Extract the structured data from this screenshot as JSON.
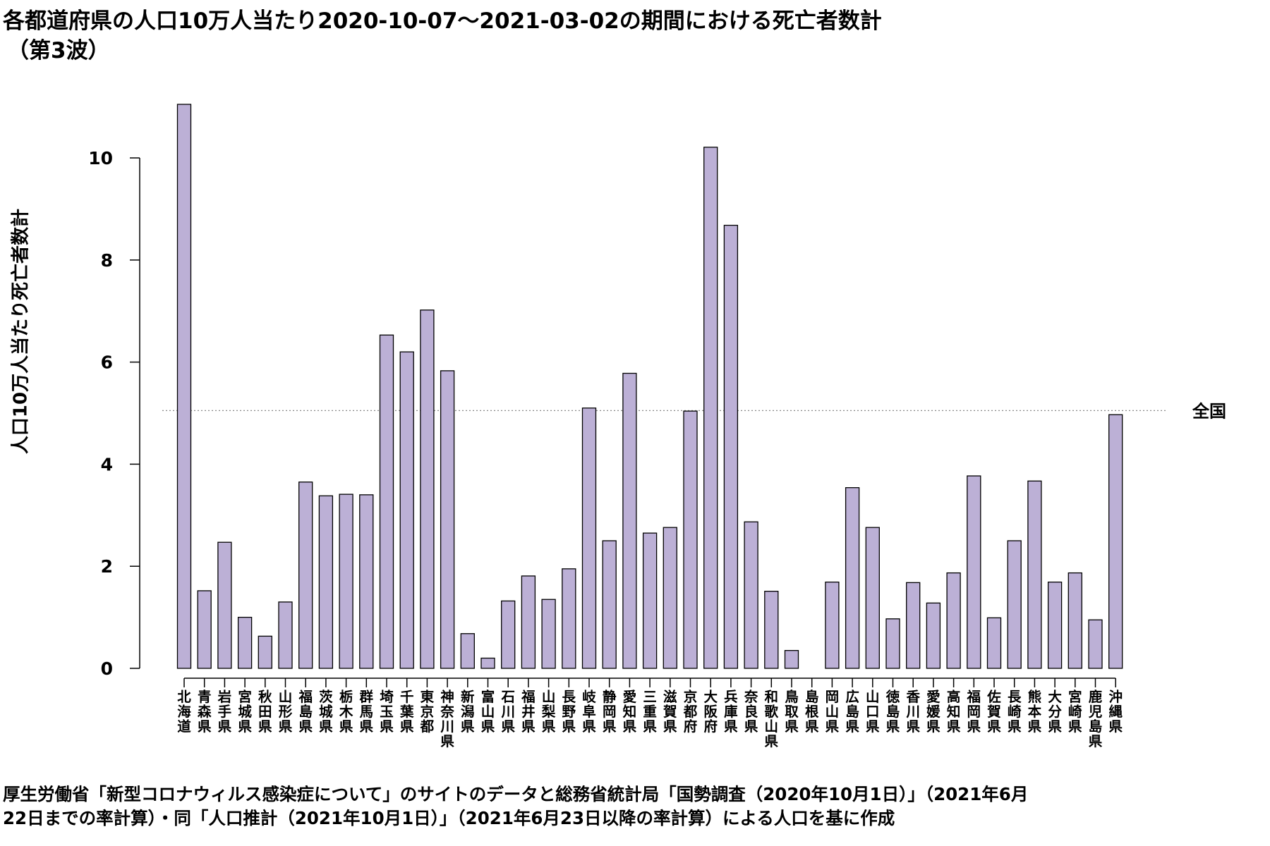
{
  "title": "各都道府県の人口10万人当たり2020-10-07～2021-03-02の期間における死亡者数計",
  "subtitle": "（第3波）",
  "caption": [
    "厚生労働省「新型コロナウィルス感染症について」のサイトのデータと総務省統計局「国勢調査（2020年10月1日）」（2021年6月",
    "22日までの率計算）・同「人口推計（2021年10月1日）」（2021年6月23日以降の率計算）による人口を基に作成"
  ],
  "colors": {
    "bar_fill": "#BCB0D6",
    "bar_stroke": "#000000",
    "ref_line": "#888888"
  },
  "chart_data": {
    "type": "bar",
    "title": "各都道府県の人口10万人当たり2020-10-07～2021-03-02の期間における死亡者数計",
    "xlabel": "",
    "ylabel": "人口10万人当たり死亡者数計",
    "ylim": [
      0,
      11
    ],
    "yticks": [
      0,
      2,
      4,
      6,
      8,
      10
    ],
    "grid": false,
    "reference_line": {
      "label": "全国",
      "value": 5.05,
      "style": "dotted"
    },
    "categories": [
      "北海道",
      "青森県",
      "岩手県",
      "宮城県",
      "秋田県",
      "山形県",
      "福島県",
      "茨城県",
      "栃木県",
      "群馬県",
      "埼玉県",
      "千葉県",
      "東京都",
      "神奈川県",
      "新潟県",
      "富山県",
      "石川県",
      "福井県",
      "山梨県",
      "長野県",
      "岐阜県",
      "静岡県",
      "愛知県",
      "三重県",
      "滋賀県",
      "京都府",
      "大阪府",
      "兵庫県",
      "奈良県",
      "和歌山県",
      "鳥取県",
      "島根県",
      "岡山県",
      "広島県",
      "山口県",
      "徳島県",
      "香川県",
      "愛媛県",
      "高知県",
      "福岡県",
      "佐賀県",
      "長崎県",
      "熊本県",
      "大分県",
      "宮崎県",
      "鹿児島県",
      "沖縄県"
    ],
    "values": [
      11.05,
      1.52,
      2.47,
      1.0,
      0.63,
      1.3,
      3.65,
      3.38,
      3.41,
      3.4,
      6.53,
      6.2,
      7.02,
      5.83,
      0.68,
      0.2,
      1.32,
      1.81,
      1.35,
      1.95,
      5.1,
      2.5,
      5.78,
      2.65,
      2.76,
      5.04,
      10.21,
      8.68,
      2.87,
      1.51,
      0.35,
      0.0,
      1.69,
      3.54,
      2.76,
      0.97,
      1.68,
      1.28,
      1.87,
      3.77,
      0.99,
      2.5,
      3.67,
      1.69,
      1.87,
      0.95,
      4.97
    ]
  }
}
